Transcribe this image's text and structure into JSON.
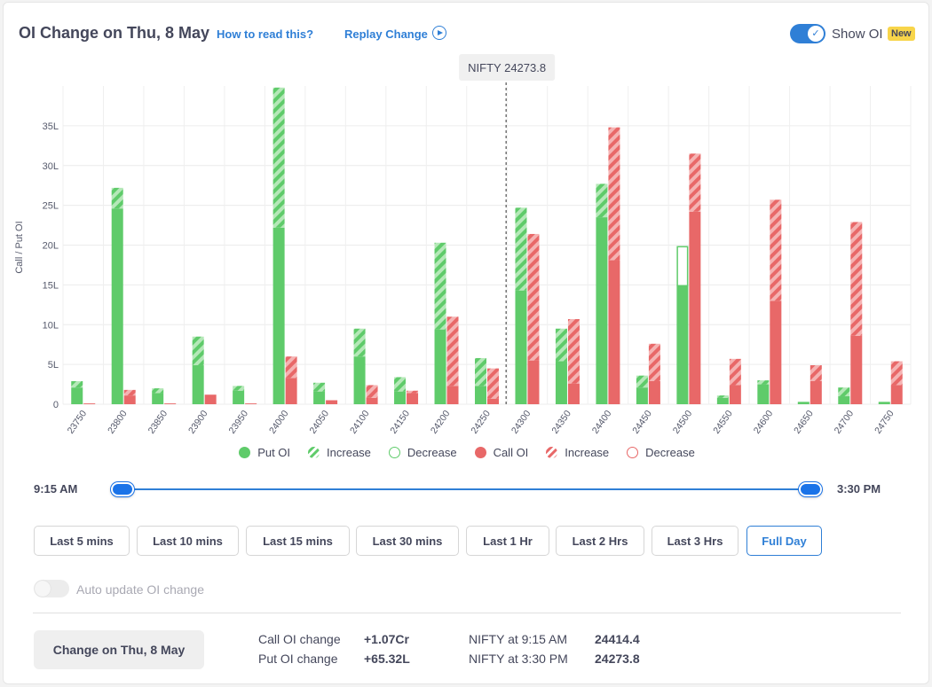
{
  "header": {
    "title": "OI Change on Thu, 8 May",
    "how_to_read": "How to read this?",
    "replay": "Replay Change",
    "show_oi": "Show OI",
    "new_badge": "New"
  },
  "tooltip": {
    "text": "NIFTY 24273.8"
  },
  "legend": {
    "put_oi": "Put OI",
    "put_increase": "Increase",
    "put_decrease": "Decrease",
    "call_oi": "Call OI",
    "call_increase": "Increase",
    "call_decrease": "Decrease"
  },
  "colors": {
    "put": "#5fcb6a",
    "put_light": "#a8e3ac",
    "call": "#e86868",
    "call_light": "#f3aaaa",
    "accent": "#2f7fd6"
  },
  "slider": {
    "start": "9:15 AM",
    "end": "3:30 PM"
  },
  "ranges": [
    "Last 5 mins",
    "Last 10 mins",
    "Last 15 mins",
    "Last 30 mins",
    "Last 1 Hr",
    "Last 2 Hrs",
    "Last 3 Hrs",
    "Full Day"
  ],
  "active_range": "Full Day",
  "auto_update": {
    "label": "Auto update OI change",
    "enabled": false
  },
  "footer": {
    "change_button": "Change on Thu, 8 May",
    "call_label": "Call OI change",
    "call_value": "+1.07Cr",
    "put_label": "Put OI change",
    "put_value": "+65.32L",
    "open_label": "NIFTY at 9:15 AM",
    "open_value": "24414.4",
    "close_label": "NIFTY at 3:30 PM",
    "close_value": "24273.8"
  },
  "chart_data": {
    "type": "bar",
    "ylabel": "Call / Put OI",
    "ylim": [
      0,
      40
    ],
    "yticks": [
      0,
      5,
      10,
      15,
      20,
      25,
      30,
      35
    ],
    "ytick_labels": [
      "0",
      "5L",
      "10L",
      "15L",
      "20L",
      "25L",
      "30L",
      "35L"
    ],
    "spot_marker": {
      "value": 24273.8
    },
    "categories": [
      "23750",
      "23800",
      "23850",
      "23900",
      "23950",
      "24000",
      "24050",
      "24100",
      "24150",
      "24200",
      "24250",
      "24300",
      "24350",
      "24400",
      "24450",
      "24500",
      "24550",
      "24600",
      "24650",
      "24700",
      "24750"
    ],
    "series": [
      {
        "name": "Put OI",
        "values": [
          2.1,
          24.6,
          1.4,
          4.9,
          1.7,
          22.2,
          1.6,
          6.0,
          1.6,
          9.4,
          2.3,
          14.3,
          5.4,
          23.5,
          2.1,
          14.9,
          0.8,
          2.5,
          0.3,
          1.0,
          0.3
        ]
      },
      {
        "name": "Put Increase",
        "values": [
          0.8,
          2.6,
          0.6,
          3.6,
          0.6,
          17.6,
          1.1,
          3.5,
          1.8,
          10.9,
          3.5,
          10.4,
          4.1,
          4.2,
          1.5,
          0,
          0.3,
          0.5,
          0,
          1.1,
          0
        ]
      },
      {
        "name": "Put Decrease",
        "values": [
          0,
          0,
          0,
          0,
          0,
          0,
          0,
          0,
          0,
          0,
          0,
          0,
          0,
          0,
          0,
          4.9,
          0,
          0,
          0,
          0,
          0
        ]
      },
      {
        "name": "Call OI",
        "values": [
          0.1,
          1.1,
          0.1,
          1.2,
          0.1,
          3.3,
          0.5,
          0.8,
          1.4,
          2.3,
          0.7,
          5.5,
          2.6,
          18.1,
          2.9,
          24.2,
          2.4,
          13.0,
          2.9,
          8.6,
          2.4
        ]
      },
      {
        "name": "Call Increase",
        "values": [
          0,
          0.7,
          0,
          0,
          0,
          2.7,
          0,
          1.6,
          0.3,
          8.7,
          3.8,
          15.9,
          8.1,
          16.7,
          4.7,
          7.3,
          3.3,
          12.7,
          2.0,
          14.3,
          3.0
        ]
      },
      {
        "name": "Call Decrease",
        "values": [
          0,
          0,
          0,
          0,
          0,
          0,
          0,
          0,
          0,
          0,
          0,
          0,
          0,
          0,
          0,
          0,
          0,
          0,
          0,
          0,
          0
        ]
      }
    ]
  }
}
